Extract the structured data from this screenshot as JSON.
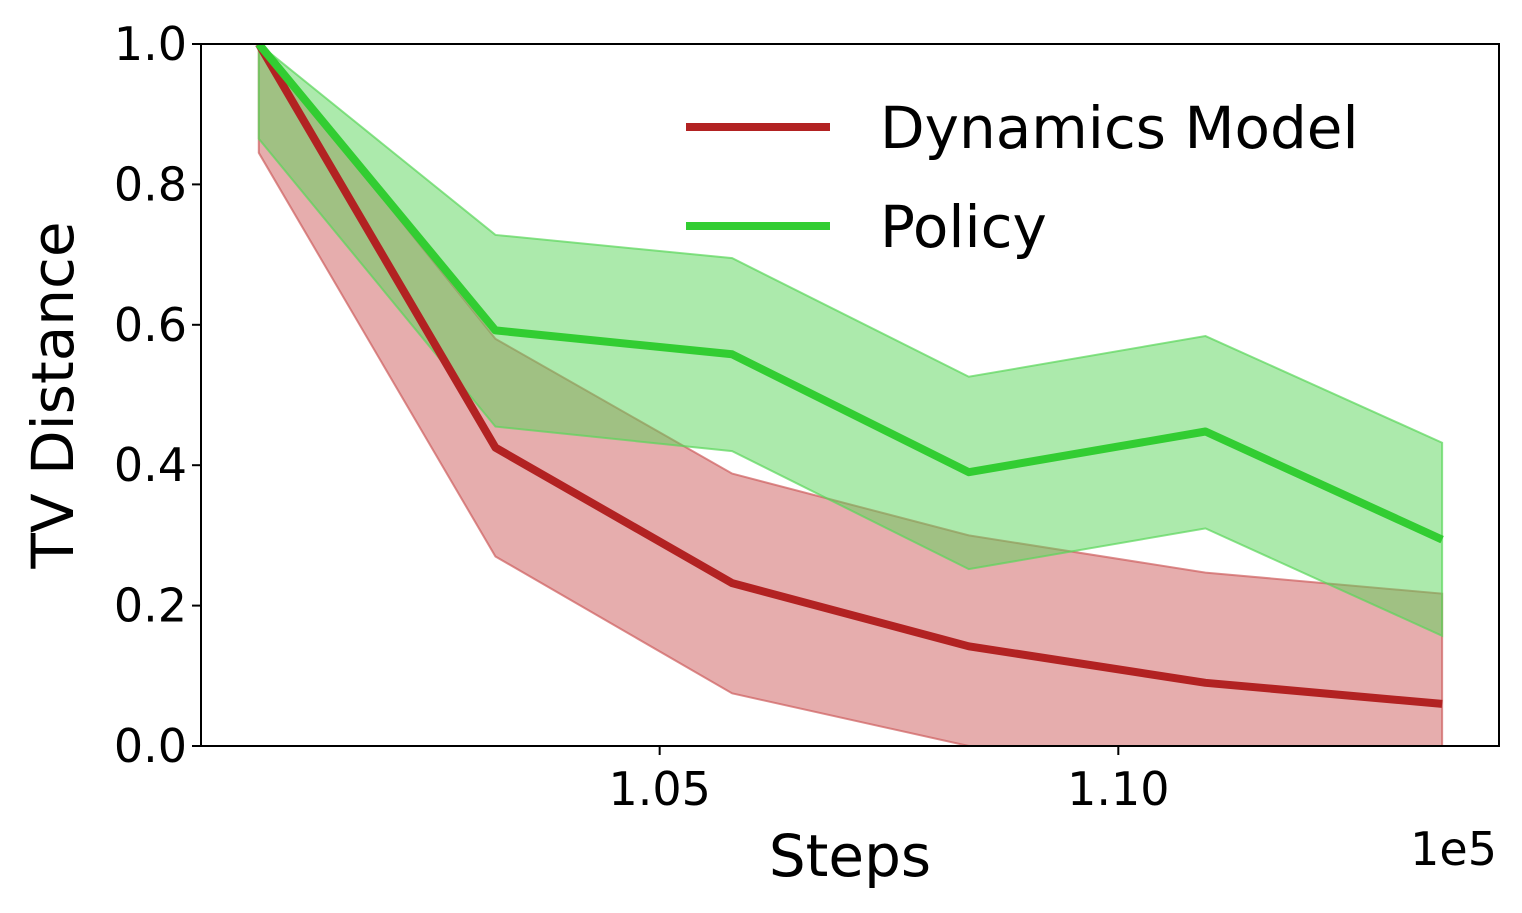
{
  "chart_data": {
    "type": "line",
    "xlabel": "Steps",
    "ylabel": "TV Distance",
    "x_offset_label": "1e5",
    "xlim": [
      1.0,
      1.1415
    ],
    "ylim": [
      0.0,
      1.0
    ],
    "x_ticks": [
      1.05,
      1.1
    ],
    "x_tick_labels": [
      "1.05",
      "1.10"
    ],
    "y_ticks": [
      0.0,
      0.2,
      0.4,
      0.6,
      0.8,
      1.0
    ],
    "y_tick_labels": [
      "0.0",
      "0.2",
      "0.4",
      "0.6",
      "0.8",
      "1.0"
    ],
    "grid": false,
    "legend_position": "top-right",
    "x": [
      1.0063,
      1.0321,
      1.0579,
      1.0837,
      1.1095,
      1.1353
    ],
    "series": [
      {
        "name": "Dynamics Model",
        "color": "#b22222",
        "band_color": "#cd5c5c",
        "values": [
          1.0,
          0.425,
          0.232,
          0.142,
          0.09,
          0.06
        ],
        "lower": [
          0.845,
          0.27,
          0.075,
          0.0,
          0.0,
          0.0
        ],
        "upper": [
          1.0,
          0.58,
          0.388,
          0.3,
          0.247,
          0.217
        ]
      },
      {
        "name": "Policy",
        "color": "#32cd32",
        "band_color": "#5ad65a",
        "values": [
          1.0,
          0.592,
          0.558,
          0.39,
          0.448,
          0.294
        ],
        "lower": [
          0.865,
          0.455,
          0.42,
          0.252,
          0.31,
          0.157
        ],
        "upper": [
          1.0,
          0.728,
          0.695,
          0.526,
          0.584,
          0.432
        ]
      }
    ]
  }
}
